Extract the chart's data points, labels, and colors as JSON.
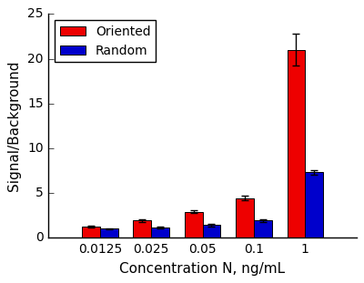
{
  "categories": [
    "0.0125",
    "0.025",
    "0.05",
    "0.1",
    "1"
  ],
  "oriented_values": [
    1.2,
    1.9,
    2.9,
    4.4,
    21.0
  ],
  "oriented_errors": [
    0.1,
    0.12,
    0.15,
    0.25,
    1.8
  ],
  "random_values": [
    1.0,
    1.1,
    1.4,
    1.9,
    7.3
  ],
  "random_errors": [
    0.08,
    0.1,
    0.12,
    0.18,
    0.25
  ],
  "oriented_color": "#EE0000",
  "random_color": "#0000CC",
  "bar_width": 0.35,
  "ylabel": "Signal/Background",
  "xlabel": "Concentration N, ng/mL",
  "ylim": [
    0,
    25
  ],
  "yticks": [
    0,
    5,
    10,
    15,
    20,
    25
  ],
  "legend_labels": [
    "Oriented",
    "Random"
  ],
  "background_color": "#ffffff",
  "plot_bg_color": "#ffffff",
  "edge_color": "black",
  "capsize": 3,
  "axis_fontsize": 11,
  "tick_fontsize": 10,
  "legend_fontsize": 10
}
